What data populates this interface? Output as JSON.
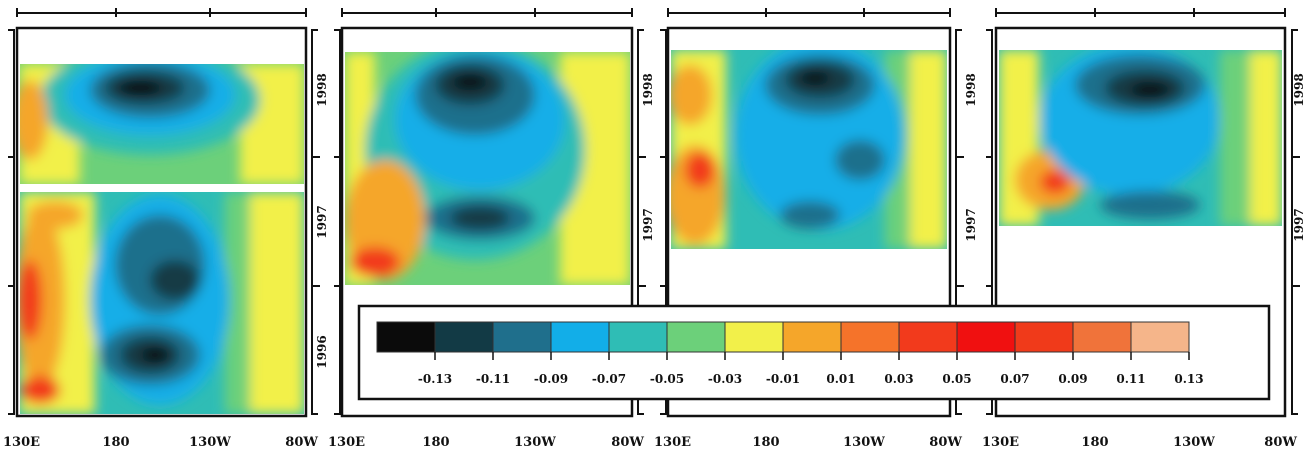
{
  "chart_data": {
    "type": "heatmap",
    "description_panels": 4,
    "x_ticks": [
      "130E",
      "180",
      "130W",
      "80W"
    ],
    "y_ticks": [
      "1996",
      "1997",
      "1998"
    ],
    "colorbar": {
      "tick_labels": [
        "-0.13",
        "-0.11",
        "-0.09",
        "-0.07",
        "-0.05",
        "-0.03",
        "-0.01",
        "0.01",
        "0.03",
        "0.05",
        "0.07",
        "0.09",
        "0.11",
        "0.13"
      ],
      "colors": [
        "#0b0b0b",
        "#123a45",
        "#1f6f8c",
        "#12aee8",
        "#2fbdb5",
        "#6cd07a",
        "#f2f04a",
        "#f5a62a",
        "#f5732a",
        "#f23a1c",
        "#f01010",
        "#f03a1a",
        "#f0733a",
        "#f5b58a"
      ]
    },
    "panels": [
      {
        "x_range": [
          "130E",
          "80W"
        ],
        "y_years": [
          "1996",
          "1997",
          "1998"
        ]
      },
      {
        "x_range": [
          "130E",
          "80W"
        ],
        "y_years": [
          "1997",
          "1998"
        ]
      },
      {
        "x_range": [
          "130E",
          "80W"
        ],
        "y_years": [
          "1997",
          "1998"
        ]
      },
      {
        "x_range": [
          "130E",
          "80W"
        ],
        "y_years": [
          "1997",
          "1998"
        ]
      }
    ]
  }
}
